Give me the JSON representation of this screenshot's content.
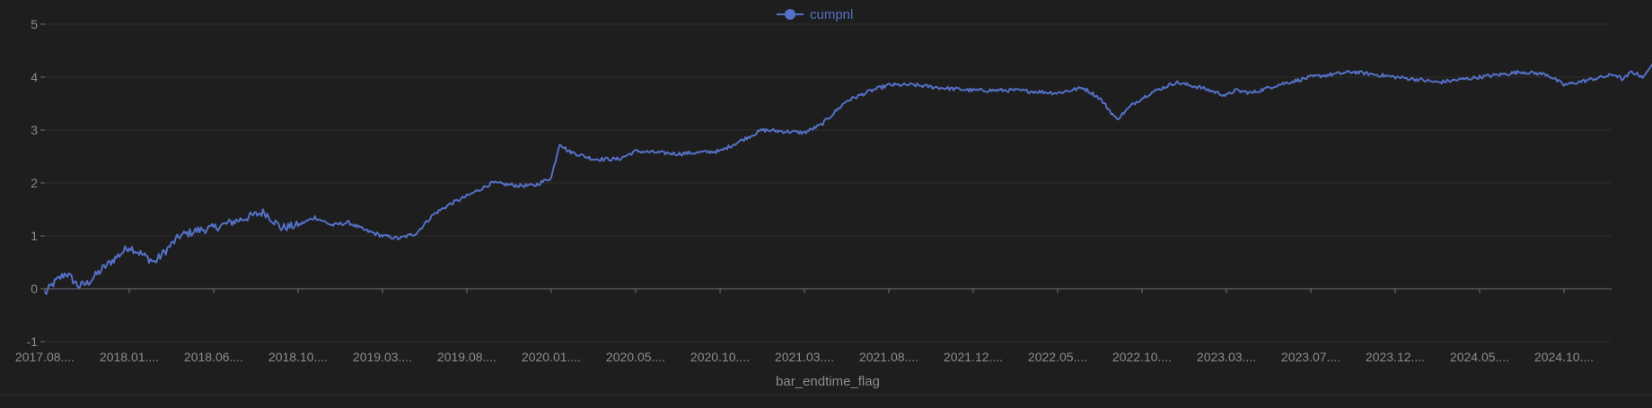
{
  "chart_data": {
    "type": "line",
    "title": "",
    "xlabel": "bar_endtime_flag",
    "ylabel": "",
    "ylim": [
      -1,
      5
    ],
    "yticks": [
      "-1",
      "0",
      "1",
      "2",
      "3",
      "4",
      "5"
    ],
    "xticks": [
      "2017.08....",
      "2018.01....",
      "2018.06....",
      "2018.10....",
      "2019.03....",
      "2019.08....",
      "2020.01....",
      "2020.05....",
      "2020.10....",
      "2021.03....",
      "2021.08....",
      "2021.12....",
      "2022.05....",
      "2022.10....",
      "2023.03....",
      "2023.07....",
      "2023.12....",
      "2024.05....",
      "2024.10...."
    ],
    "grid": true,
    "legend": "top-center",
    "series": [
      {
        "name": "cumpnl",
        "color": "#5470c6",
        "x": [
          0,
          0.1,
          0.25,
          0.4,
          0.5,
          0.7,
          1.0,
          1.3,
          1.6,
          1.8,
          2.0,
          2.2,
          2.4,
          2.6,
          2.8,
          3.0,
          3.2,
          3.4,
          3.6,
          3.8,
          4.0,
          4.2,
          4.4,
          4.6,
          4.8,
          5.0,
          5.3,
          5.6,
          5.8,
          6.0,
          6.1,
          6.2,
          6.3,
          6.5,
          6.8,
          7.0,
          7.5,
          8.0,
          8.5,
          9.0,
          9.2,
          9.5,
          9.8,
          10.0,
          10.3,
          10.6,
          11.0,
          11.5,
          12.0,
          12.3,
          12.5,
          12.7,
          12.9,
          13.1,
          13.4,
          13.7,
          14.0,
          14.1,
          14.3,
          14.6,
          15.0,
          15.5,
          16.0,
          16.3,
          16.5,
          17.0,
          17.5,
          17.8,
          18.0,
          18.3,
          18.6,
          18.7,
          18.8,
          18.95
        ],
        "y": [
          -0.1,
          0.1,
          0.3,
          0.05,
          0.1,
          0.4,
          0.8,
          0.5,
          1.0,
          1.1,
          1.15,
          1.25,
          1.35,
          1.45,
          1.15,
          1.2,
          1.35,
          1.2,
          1.25,
          1.1,
          1.0,
          0.95,
          1.05,
          1.4,
          1.6,
          1.75,
          2.0,
          1.95,
          1.95,
          2.1,
          2.75,
          2.6,
          2.55,
          2.45,
          2.45,
          2.6,
          2.55,
          2.6,
          3.0,
          2.95,
          3.1,
          3.55,
          3.75,
          3.85,
          3.85,
          3.8,
          3.75,
          3.75,
          3.7,
          3.8,
          3.6,
          3.2,
          3.5,
          3.7,
          3.9,
          3.8,
          3.65,
          3.75,
          3.7,
          3.85,
          4.0,
          4.1,
          4.0,
          3.95,
          3.9,
          4.0,
          4.1,
          4.05,
          3.85,
          3.95,
          4.05,
          3.95,
          4.1,
          4.0
        ]
      }
    ],
    "end_values": [
      4.3,
      4.35,
      4.25,
      4.2
    ]
  }
}
